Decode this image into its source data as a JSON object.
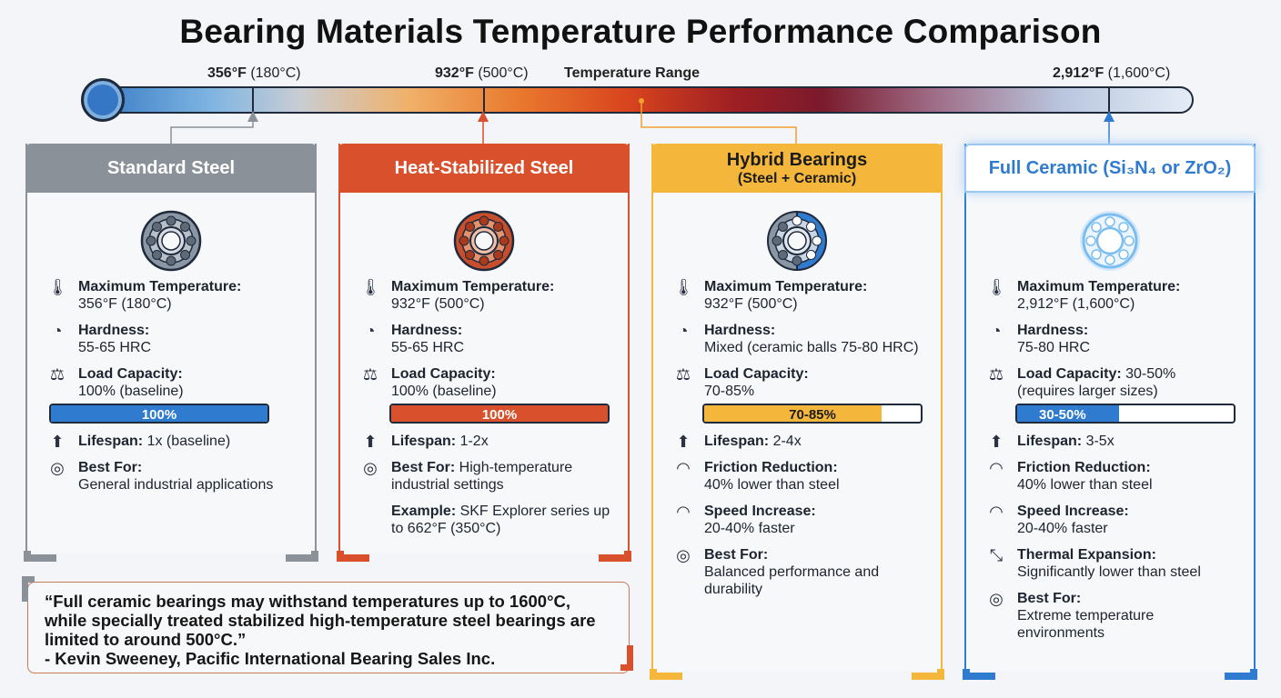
{
  "title": "Bearing Materials Temperature Performance Comparison",
  "temperature_bar": {
    "label": "Temperature Range",
    "markers": [
      {
        "bold": "356°F",
        "rest": " (180°C)"
      },
      {
        "bold": "932°F",
        "rest": " (500°C)"
      },
      {
        "bold": "2,912°F",
        "rest": " (1,600°C)"
      }
    ]
  },
  "cards": [
    {
      "title": "Standard Steel",
      "accent": "#8b9199",
      "icon": "steel-bearing-icon",
      "max_temp_label": "Maximum Temperature:",
      "max_temp_value": "356°F (180°C)",
      "hardness_label": "Hardness:",
      "hardness_value": "55-65 HRC",
      "load_label": "Load Capacity:",
      "load_value": "100% (baseline)",
      "load_bar": {
        "text": "100%",
        "fraction": 1.0,
        "color": "#2f7bd0"
      },
      "lifespan_label": "Lifespan:",
      "lifespan_value": " 1x (baseline)",
      "best_label": "Best For:",
      "best_value": "General industrial applications"
    },
    {
      "title": "Heat-Stabilized Steel",
      "accent": "#d9512c",
      "icon": "heat-stabilized-bearing-icon",
      "max_temp_label": "Maximum Temperature:",
      "max_temp_value": "932°F (500°C)",
      "hardness_label": "Hardness:",
      "hardness_value": "55-65 HRC",
      "load_label": "Load Capacity:",
      "load_value": "100% (baseline)",
      "load_bar": {
        "text": "100%",
        "fraction": 1.0,
        "color": "#d9512c"
      },
      "lifespan_label": "Lifespan:",
      "lifespan_value": " 1-2x",
      "best_label": "Best For:",
      "best_value": " High-temperature industrial settings",
      "example_label": "Example:",
      "example_value": " SKF Explorer series up to 662°F (350°C)"
    },
    {
      "title": "Hybrid Bearings",
      "subtitle": "(Steel + Ceramic)",
      "accent": "#f5b73b",
      "icon": "hybrid-bearing-icon",
      "max_temp_label": "Maximum Temperature:",
      "max_temp_value": "932°F (500°C)",
      "hardness_label": "Hardness:",
      "hardness_value": "Mixed (ceramic balls 75-80 HRC)",
      "load_label": "Load Capacity:",
      "load_value": "70-85%",
      "load_bar": {
        "text": "70-85%",
        "fraction": 0.82,
        "color": "#f5b73b"
      },
      "lifespan_label": "Lifespan:",
      "lifespan_value": " 2-4x",
      "friction_label": "Friction Reduction:",
      "friction_value": "40% lower than steel",
      "speed_label": "Speed Increase:",
      "speed_value": "20-40% faster",
      "best_label": "Best For:",
      "best_value": "Balanced performance and durability"
    },
    {
      "title": "Full Ceramic (Si₃N₄ or ZrO₂)",
      "accent": "#2f7bd0",
      "icon": "ceramic-bearing-icon",
      "max_temp_label": "Maximum Temperature:",
      "max_temp_value": "2,912°F (1,600°C)",
      "hardness_label": "Hardness:",
      "hardness_value": "75-80 HRC",
      "load_label": "Load Capacity:",
      "load_value_inline": " 30-50%",
      "load_value": "(requires larger sizes)",
      "load_bar": {
        "text": "30-50%",
        "fraction": 0.47,
        "color": "#2f7bd0"
      },
      "lifespan_label": "Lifespan:",
      "lifespan_value": " 3-5x",
      "friction_label": "Friction Reduction:",
      "friction_value": "40% lower than steel",
      "speed_label": "Speed Increase:",
      "speed_value": "20-40% faster",
      "thermal_label": "Thermal Expansion:",
      "thermal_value": "Significantly lower than steel",
      "best_label": "Best For:",
      "best_value": "Extreme temperature environments"
    }
  ],
  "quote": {
    "text": "“Full ceramic bearings may withstand temperatures up to 1600°C, while specially treated stabilized high-temperature steel bearings are limited to around 500°C.”",
    "attribution": "- Kevin Sweeney, Pacific International Bearing Sales Inc."
  }
}
